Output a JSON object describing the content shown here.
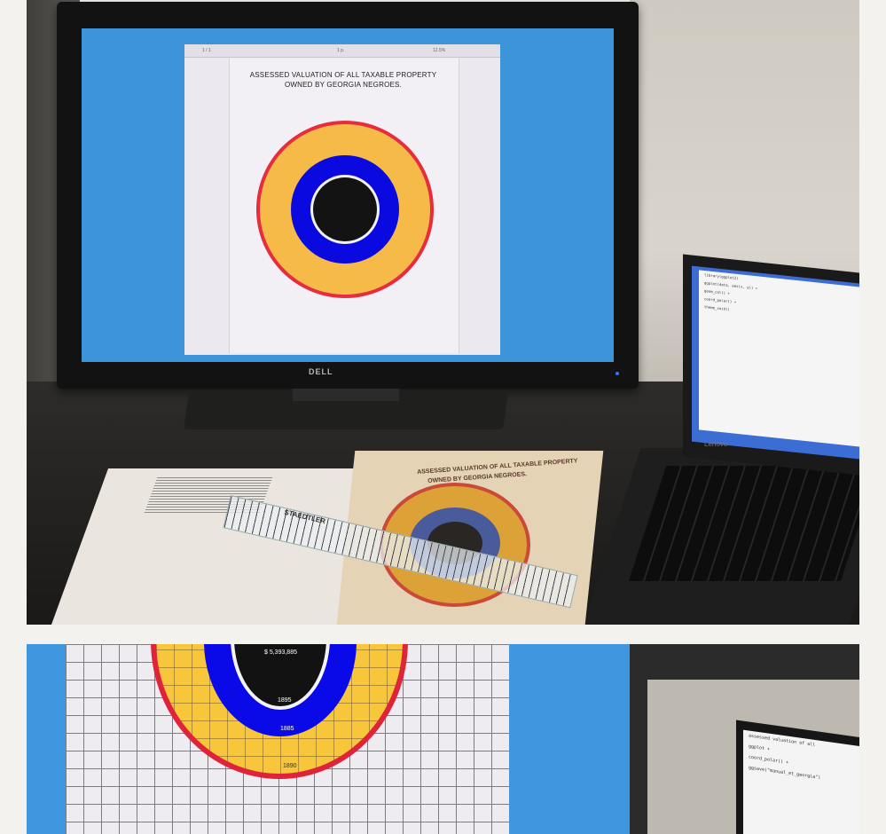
{
  "photo1": {
    "monitor": {
      "brand": "DELL",
      "pdf_viewer": {
        "page_indicator": "1 / 1",
        "title": "1 p.",
        "zoom": "12.5%"
      },
      "chart_title_line1": "ASSESSED VALUATION OF ALL TAXABLE PROPERTY",
      "chart_title_line2": "OWNED BY GEORGIA NEGROES."
    },
    "book": {
      "title_line1": "ASSESSED VALUATION OF ALL TAXABLE PROPERTY",
      "title_line2": "OWNED BY GEORGIA NEGROES."
    },
    "ruler": {
      "brand": "STAEDTLER"
    },
    "laptop": {
      "brand": "Lenovo",
      "code_lines": [
        "library(ggplot2)",
        "ggplot(data, aes(x, y)) +",
        "  geom_col() +",
        "  coord_polar() +",
        "  theme_void()"
      ]
    }
  },
  "photo2": {
    "labels": {
      "center_value": "$ 5,393,885",
      "year_1895": "1895",
      "year_1885": "1885",
      "year_1890": "1890"
    },
    "laptop": {
      "code_lines": [
        "assessed valuation of all",
        "  ggplot +",
        "  coord_polar() +",
        "  ggsave(\"manual_et_georgia\")"
      ]
    }
  },
  "colors": {
    "screen_blue": "#3c95d9",
    "ring_red": "#e72c3f",
    "ring_yellow": "#f6ba48",
    "ring_blue": "#0a0ae0",
    "ring_black": "#131313"
  }
}
